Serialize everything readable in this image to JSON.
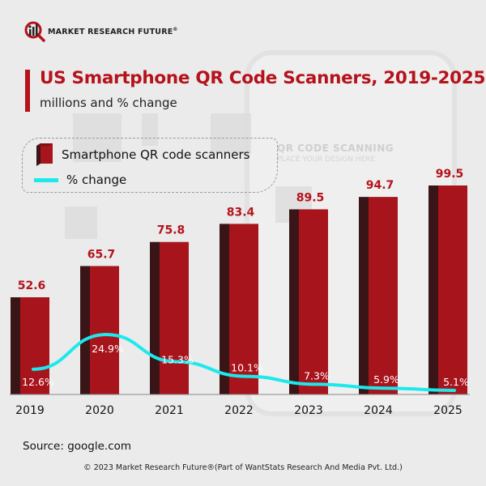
{
  "brand": {
    "logo_text": "MARKET RESEARCH FUTURE",
    "registered_mark": "®"
  },
  "background": {
    "watermark_title": "QR CODE SCANNING",
    "watermark_subtitle": "PLACE YOUR DESIGN HERE"
  },
  "legend": {
    "bar_label": "Smartphone QR code scanners",
    "line_label": "% change"
  },
  "footer": {
    "source": "Source: google.com",
    "copyright": "© 2023 Market Research Future®(Part of WantStats Research And Media Pvt. Ltd.)"
  },
  "colors": {
    "accent": "#b5121b",
    "bar_front": "#a8141c",
    "bar_side": "#3a1518",
    "line": "#1de9ec",
    "value_label": "#b5121b"
  },
  "chart_data": {
    "type": "bar",
    "title": "US Smartphone QR Code Scanners, 2019-2025",
    "subtitle": "millions and % change",
    "xlabel": "",
    "ylabel": "",
    "categories": [
      "2019",
      "2020",
      "2021",
      "2022",
      "2023",
      "2024",
      "2025"
    ],
    "series": [
      {
        "name": "Smartphone QR code scanners",
        "type": "bar",
        "unit": "millions",
        "values": [
          52.6,
          65.7,
          75.8,
          83.4,
          89.5,
          94.7,
          99.5
        ],
        "labels": [
          "52.6",
          "65.7",
          "75.8",
          "83.4",
          "89.5",
          "94.7",
          "99.5"
        ]
      },
      {
        "name": "% change",
        "type": "line",
        "unit": "%",
        "values": [
          12.6,
          24.9,
          15.3,
          10.1,
          7.3,
          5.9,
          5.1
        ],
        "labels": [
          "12.6%",
          "24.9%",
          "15.3%",
          "10.1%",
          "7.3%",
          "5.9%",
          "5.1%"
        ]
      }
    ],
    "ylim": [
      0,
      100
    ],
    "grid": false,
    "legend_position": "top-left"
  }
}
